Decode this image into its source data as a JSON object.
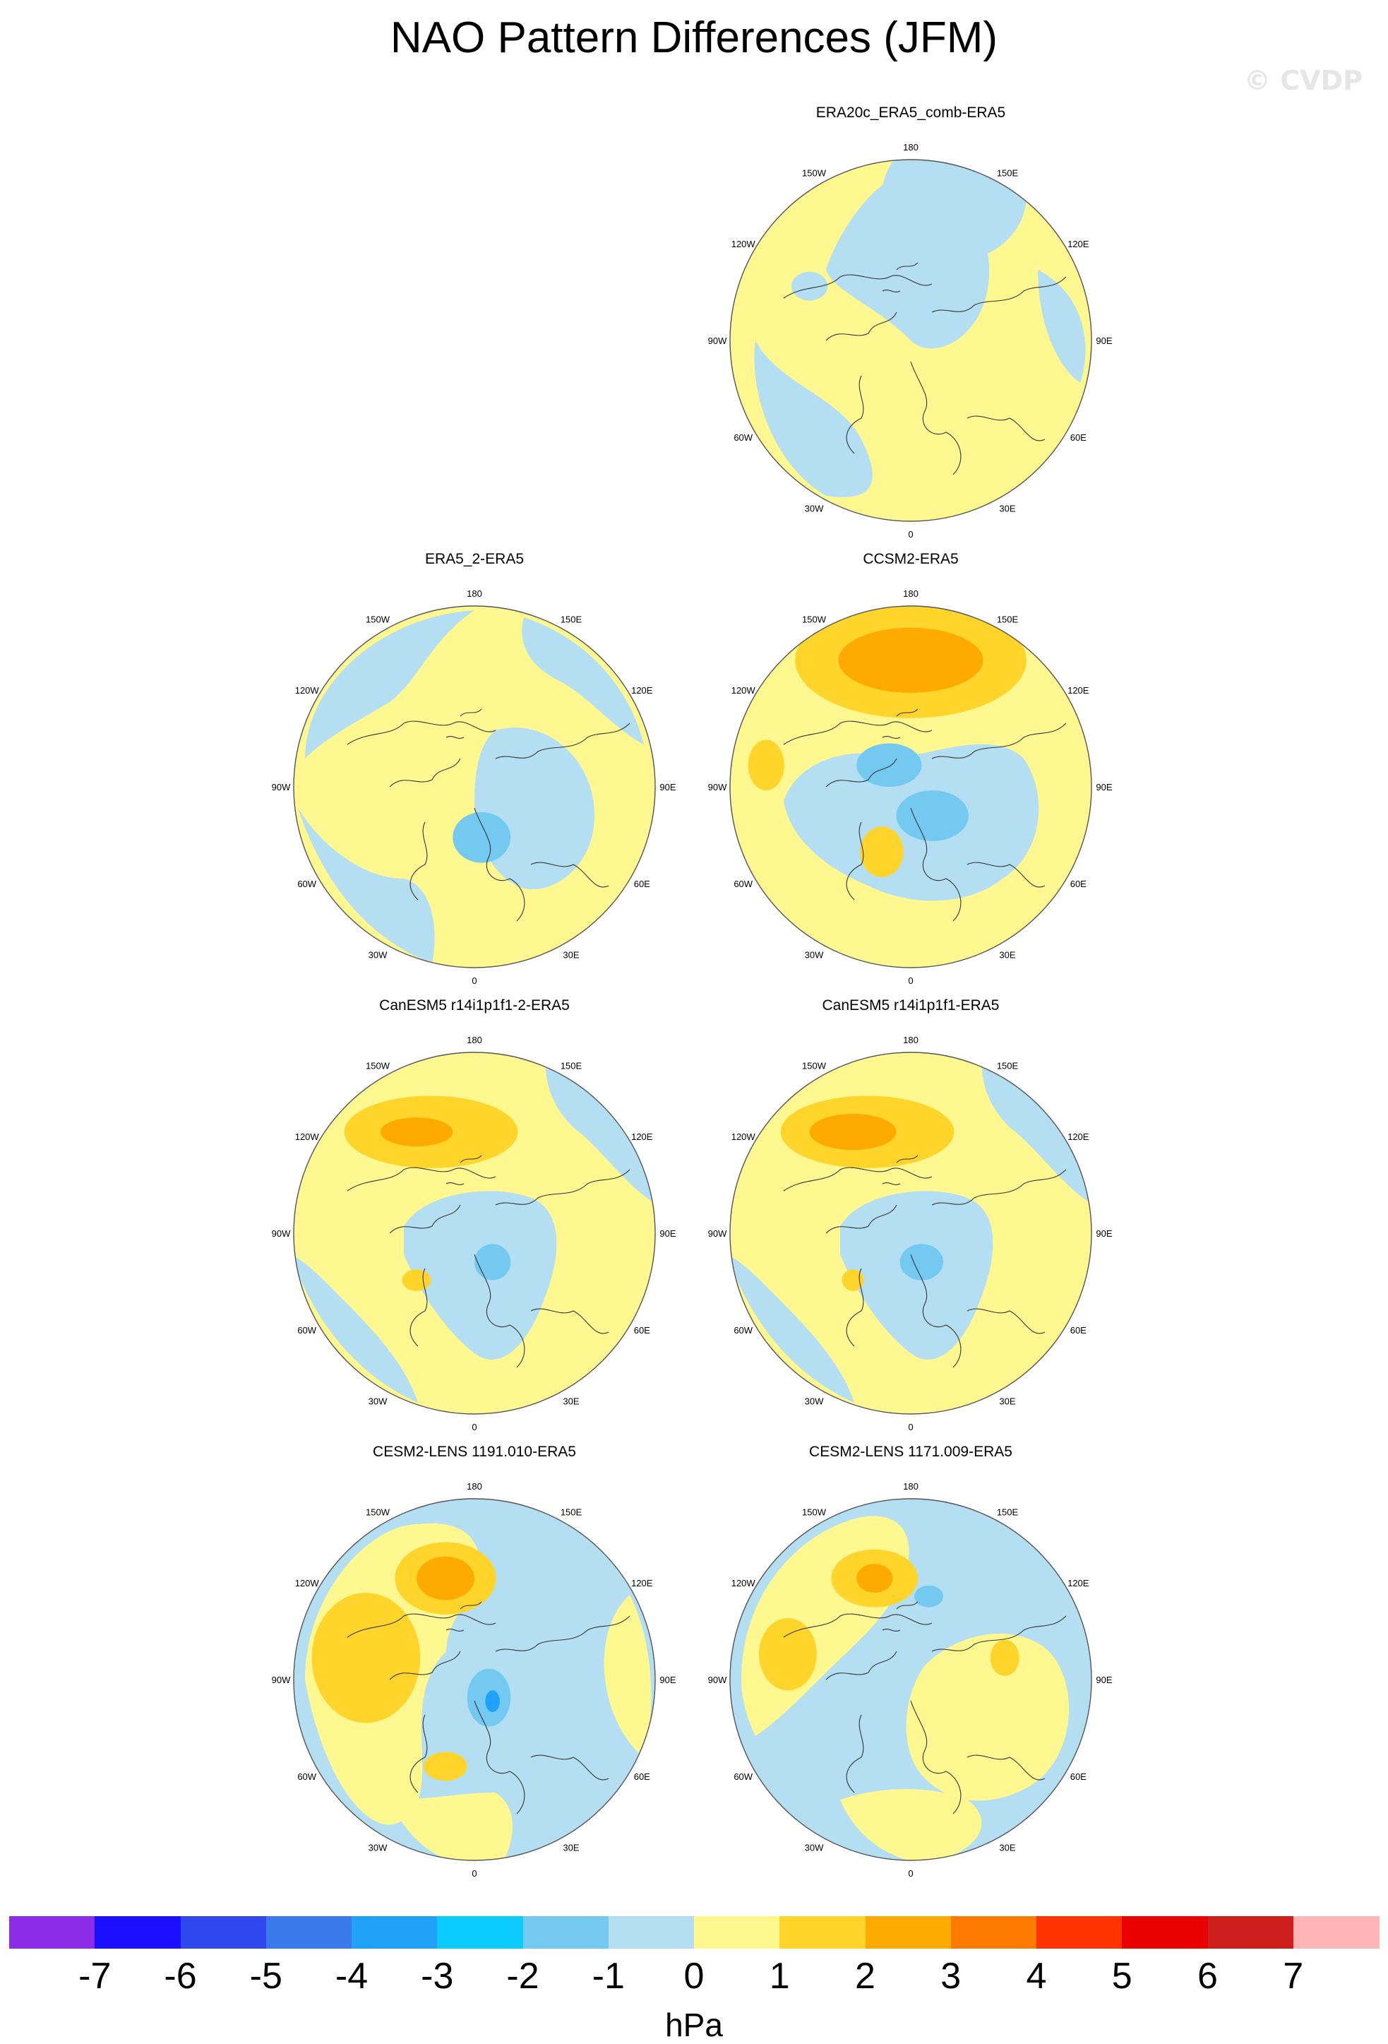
{
  "figure": {
    "title": "NAO Pattern Differences (JFM)",
    "watermark": "© CVDP"
  },
  "lon_labels": [
    "180",
    "150E",
    "120E",
    "90E",
    "60E",
    "30E",
    "0",
    "30W",
    "60W",
    "90W",
    "120W",
    "150W"
  ],
  "panels": [
    {
      "title": "ERA20c_ERA5_comb-ERA5"
    },
    {
      "title": "ERA5_2-ERA5"
    },
    {
      "title": "CCSM2-ERA5"
    },
    {
      "title": "CanESM5 r14i1p1f1-2-ERA5"
    },
    {
      "title": "CanESM5 r14i1p1f1-ERA5"
    },
    {
      "title": "CESM2-LENS 1191.010-ERA5"
    },
    {
      "title": "CESM2-LENS 1171.009-ERA5"
    }
  ],
  "colorbar": {
    "units": "hPa",
    "tick_labels": [
      "-7",
      "-6",
      "-5",
      "-4",
      "-3",
      "-2",
      "-1",
      "0",
      "1",
      "2",
      "3",
      "4",
      "5",
      "6",
      "7"
    ],
    "colors": [
      "#8c2be8",
      "#1b0fff",
      "#2e47ef",
      "#3a78ec",
      "#1fa2f8",
      "#0ccbff",
      "#74c9f0",
      "#b4def2",
      "#fff891",
      "#ffd52c",
      "#ffaa00",
      "#ff7b00",
      "#ff3300",
      "#ea0000",
      "#cf1e1e",
      "#ffb5b5"
    ]
  }
}
